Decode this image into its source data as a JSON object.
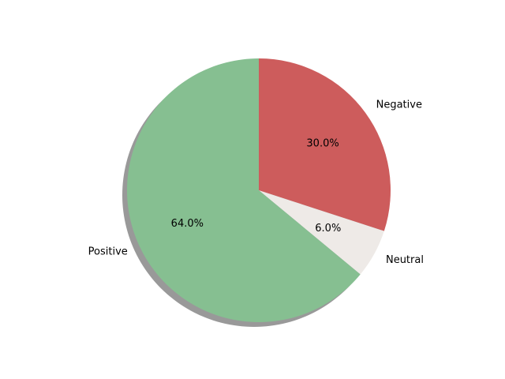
{
  "chart_data": {
    "type": "pie",
    "title": "",
    "categories": [
      "Negative",
      "Neutral",
      "Positive"
    ],
    "values": [
      30.0,
      6.0,
      64.0
    ],
    "percent_labels": [
      "30.0%",
      "6.0%",
      "64.0%"
    ],
    "colors": [
      "#cd5c5c",
      "#eeeae7",
      "#86bf91"
    ],
    "start_angle_deg": 90,
    "direction": "clockwise",
    "shadow": true,
    "legend": "none"
  }
}
